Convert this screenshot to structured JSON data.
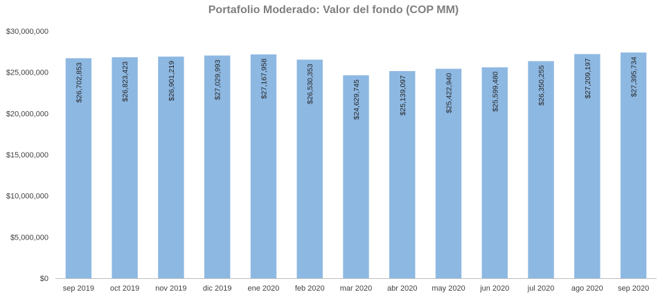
{
  "chart_data": {
    "type": "bar",
    "title": "Portafolio Moderado: Valor del fondo (COP MM)",
    "categories": [
      "sep 2019",
      "oct 2019",
      "nov 2019",
      "dic 2019",
      "ene 2020",
      "feb 2020",
      "mar 2020",
      "abr 2020",
      "may 2020",
      "jun 2020",
      "jul 2020",
      "ago 2020",
      "sep 2020"
    ],
    "values": [
      26702853,
      26823423,
      26901219,
      27029993,
      27167958,
      26530353,
      24629745,
      25139097,
      25422940,
      25599480,
      26350255,
      27209197,
      27395734
    ],
    "data_labels": [
      "$26,702,853",
      "$26,823,423",
      "$26,901,219",
      "$27,029,993",
      "$27,167,958",
      "$26,530,353",
      "$24,629,745",
      "$25,139,097",
      "$25,422,940",
      "$25,599,480",
      "$26,350,255",
      "$27,209,197",
      "$27,395,734"
    ],
    "ylim": [
      0,
      30000000
    ],
    "y_ticks": [
      0,
      5000000,
      10000000,
      15000000,
      20000000,
      25000000,
      30000000
    ],
    "y_tick_labels": [
      "$0",
      "$5,000,000",
      "$10,000,000",
      "$15,000,000",
      "$20,000,000",
      "$25,000,000",
      "$30,000,000"
    ],
    "grid": false,
    "legend": "none",
    "bar_color": "#8db8e2",
    "axis_color": "#bfbfbf"
  }
}
